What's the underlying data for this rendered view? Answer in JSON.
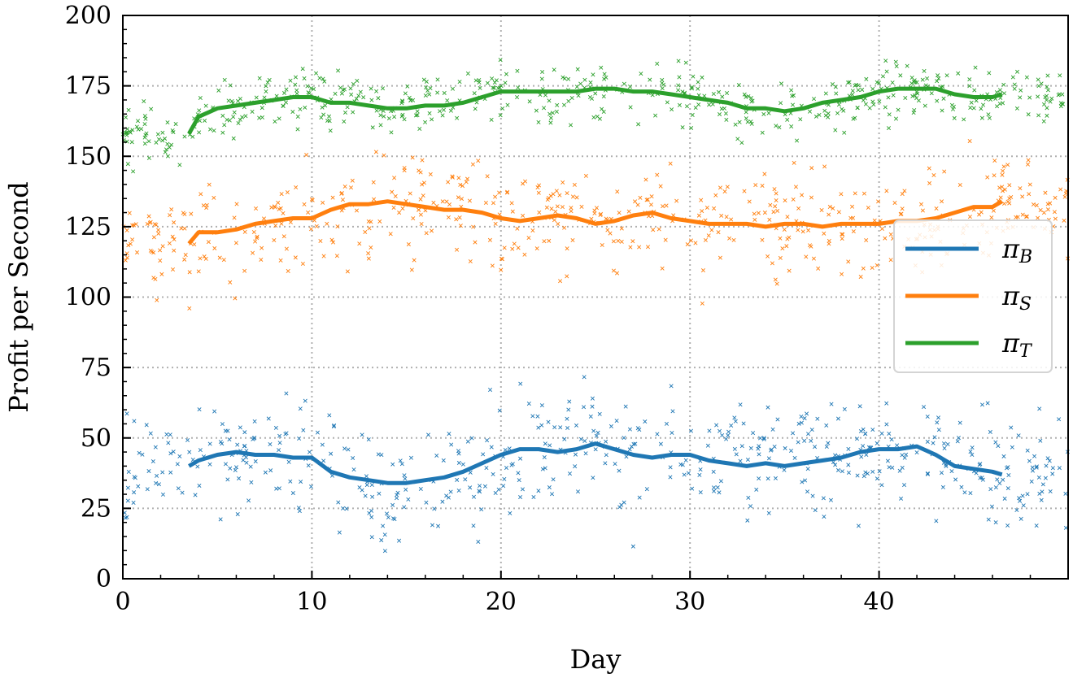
{
  "chart_data": {
    "type": "line",
    "title": "",
    "xlabel": "Day",
    "ylabel": "Profit per Second",
    "xlim": [
      0,
      50
    ],
    "ylim": [
      0,
      200
    ],
    "x_ticks": [
      0,
      10,
      20,
      30,
      40
    ],
    "x_tick_labels": [
      "0",
      "10",
      "20",
      "30",
      "40"
    ],
    "y_ticks": [
      0,
      25,
      50,
      75,
      100,
      125,
      150,
      175,
      200
    ],
    "y_tick_labels": [
      "0",
      "25",
      "50",
      "75",
      "100",
      "125",
      "150",
      "175",
      "200"
    ],
    "grid": true,
    "grid_style": "dotted",
    "legend_position": "center-right",
    "series": [
      {
        "name": "πB",
        "color": "#1f77b4",
        "x": [
          3.5,
          4,
          5,
          6,
          7,
          8,
          9,
          10,
          11,
          12,
          13,
          14,
          15,
          16,
          17,
          18,
          19,
          20,
          21,
          22,
          23,
          24,
          25,
          26,
          27,
          28,
          29,
          30,
          31,
          32,
          33,
          34,
          35,
          36,
          37,
          38,
          39,
          40,
          41,
          42,
          43,
          44,
          45,
          46,
          46.5
        ],
        "values": [
          40,
          42,
          44,
          45,
          44,
          44,
          43,
          43,
          38,
          36,
          35,
          34,
          34,
          35,
          36,
          38,
          41,
          44,
          46,
          46,
          45,
          46,
          48,
          46,
          44,
          43,
          44,
          44,
          42,
          41,
          40,
          41,
          40,
          41,
          42,
          43,
          45,
          46,
          46,
          47,
          44,
          40,
          39,
          38,
          37
        ]
      },
      {
        "name": "πS",
        "color": "#ff7f0e",
        "x": [
          3.5,
          4,
          5,
          6,
          7,
          8,
          9,
          10,
          11,
          12,
          13,
          14,
          15,
          16,
          17,
          18,
          19,
          20,
          21,
          22,
          23,
          24,
          25,
          26,
          27,
          28,
          29,
          30,
          31,
          32,
          33,
          34,
          35,
          36,
          37,
          38,
          39,
          40,
          41,
          42,
          43,
          44,
          45,
          46,
          46.5
        ],
        "values": [
          119,
          123,
          123,
          124,
          126,
          127,
          128,
          128,
          131,
          133,
          133,
          134,
          133,
          132,
          131,
          131,
          130,
          128,
          127,
          128,
          129,
          128,
          126,
          127,
          129,
          130,
          128,
          127,
          126,
          126,
          126,
          125,
          126,
          126,
          125,
          126,
          126,
          126,
          127,
          127,
          128,
          130,
          132,
          132,
          134
        ]
      },
      {
        "name": "πT",
        "color": "#2ca02c",
        "x": [
          3.5,
          4,
          5,
          6,
          7,
          8,
          9,
          10,
          11,
          12,
          13,
          14,
          15,
          16,
          17,
          18,
          19,
          20,
          21,
          22,
          23,
          24,
          25,
          26,
          27,
          28,
          29,
          30,
          31,
          32,
          33,
          34,
          35,
          36,
          37,
          38,
          39,
          40,
          41,
          42,
          43,
          44,
          45,
          46,
          46.5
        ],
        "values": [
          158,
          164,
          167,
          168,
          169,
          170,
          171,
          171,
          169,
          169,
          168,
          167,
          167,
          168,
          168,
          169,
          171,
          173,
          173,
          173,
          173,
          173,
          174,
          174,
          173,
          173,
          172,
          171,
          170,
          169,
          167,
          167,
          166,
          167,
          169,
          170,
          171,
          173,
          174,
          174,
          174,
          172,
          171,
          171,
          172
        ]
      }
    ]
  }
}
